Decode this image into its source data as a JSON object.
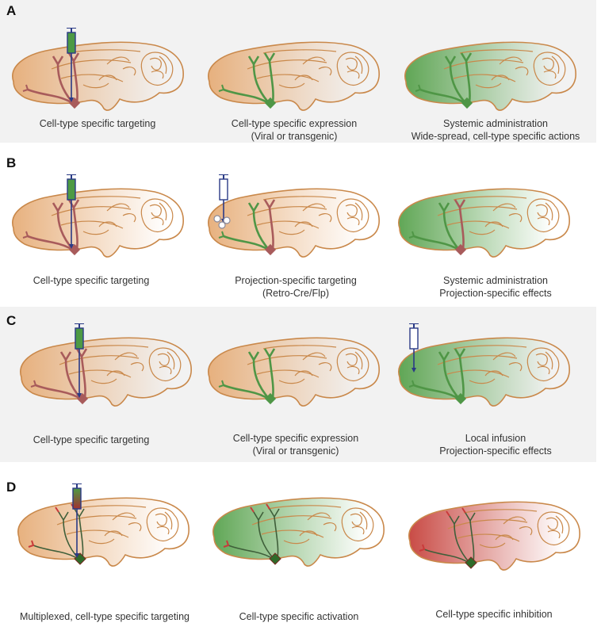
{
  "colors": {
    "tan": "#e8b07c",
    "brain_outline": "#c9884a",
    "neuron_red": "#a85b5b",
    "neuron_green": "#4f9646",
    "syringe_green": "#4d9a44",
    "syringe_outline": "#2a3a86",
    "syringe_red": "#a33131",
    "inhibit_red": "#c93a3a",
    "band": "#f2f2f2"
  },
  "rows": [
    {
      "label": "A",
      "panels": [
        {
          "caption": [
            "Cell-type specific targeting"
          ]
        },
        {
          "caption": [
            "Cell-type specific expression",
            "(Viral or transgenic)"
          ]
        },
        {
          "caption": [
            "Systemic administration",
            "Wide-spread, cell-type specific actions"
          ]
        }
      ]
    },
    {
      "label": "B",
      "panels": [
        {
          "caption": [
            "Cell-type specific targeting"
          ]
        },
        {
          "caption": [
            "Projection-specific targeting",
            "(Retro-Cre/Flp)"
          ]
        },
        {
          "caption": [
            "Systemic administration",
            "Projection-specific effects"
          ]
        }
      ]
    },
    {
      "label": "C",
      "panels": [
        {
          "caption": [
            "Cell-type specific targeting"
          ]
        },
        {
          "caption": [
            "Cell-type specific expression",
            "(Viral or transgenic)"
          ]
        },
        {
          "caption": [
            "Local infusion",
            "Projection-specific effects"
          ]
        }
      ]
    },
    {
      "label": "D",
      "panels": [
        {
          "caption": [
            "Multiplexed, cell-type specific targeting"
          ]
        },
        {
          "caption": [
            "Cell-type specific activation"
          ]
        },
        {
          "caption": [
            "Cell-type specific inhibition"
          ]
        }
      ]
    }
  ]
}
